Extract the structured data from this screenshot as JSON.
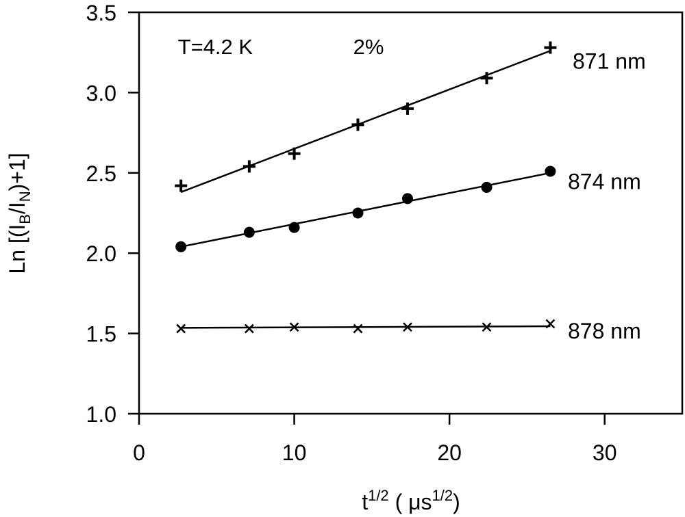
{
  "chart_data": {
    "type": "scatter",
    "title": "",
    "xlabel": "t",
    "xlabel_sup": "1/2",
    "xlabel_unit_open": " ( μs",
    "xlabel_unit_sup": "1/2",
    "xlabel_unit_close": ")",
    "ylabel_prefix": "Ln  [(I",
    "ylabel_sub1": "B",
    "ylabel_mid": "/I",
    "ylabel_sub2": "N",
    "ylabel_suffix": ")+1]",
    "xlim": [
      0,
      35
    ],
    "ylim": [
      1.0,
      3.5
    ],
    "xticks": [
      0,
      10,
      20,
      30
    ],
    "xtick_labels": [
      "0",
      "10",
      "20",
      "30"
    ],
    "yticks": [
      1.0,
      1.5,
      2.0,
      2.5,
      3.0,
      3.5
    ],
    "ytick_labels": [
      "1.0",
      "1.5",
      "2.0",
      "2.5",
      "3.0",
      "3.5"
    ],
    "grid": false,
    "annotations": [
      {
        "text": "T=4.2 K",
        "x": 2.5,
        "y": 3.24
      },
      {
        "text": "2%",
        "x": 13.8,
        "y": 3.24
      }
    ],
    "x": [
      2.7,
      7.1,
      10.0,
      14.1,
      17.3,
      22.4,
      26.5
    ],
    "series": [
      {
        "name": "871 nm",
        "marker": "plus",
        "values": [
          2.42,
          2.54,
          2.62,
          2.8,
          2.9,
          3.09,
          3.28
        ],
        "fit": [
          [
            2.7,
            2.38
          ],
          [
            26.5,
            3.26
          ]
        ]
      },
      {
        "name": "874 nm",
        "marker": "circle",
        "values": [
          2.04,
          2.13,
          2.16,
          2.25,
          2.34,
          2.41,
          2.51
        ],
        "fit": [
          [
            2.7,
            2.04
          ],
          [
            26.5,
            2.5
          ]
        ]
      },
      {
        "name": "878 nm",
        "marker": "cross",
        "values": [
          1.53,
          1.53,
          1.54,
          1.53,
          1.54,
          1.54,
          1.56
        ],
        "fit": [
          [
            2.7,
            1.535
          ],
          [
            26.5,
            1.545
          ]
        ]
      }
    ]
  }
}
